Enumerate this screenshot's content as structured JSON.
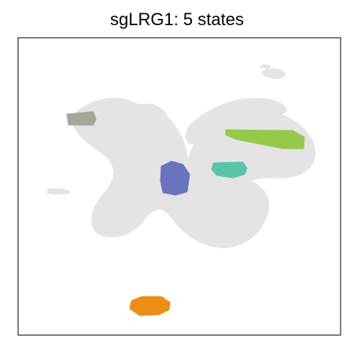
{
  "chart_data": {
    "type": "scatter",
    "title": "sgLRG1: 5 states",
    "xlabel": "",
    "ylabel": "",
    "axes_visible": false,
    "grid": false,
    "legend": "none",
    "background_cells_color": "#e4e4e4",
    "highlighted_states": [
      {
        "color": "#a6a69a"
      },
      {
        "color": "#96c94a"
      },
      {
        "color": "#5bc4a7"
      },
      {
        "color": "#6a73be"
      },
      {
        "color": "#ec8d15"
      }
    ]
  }
}
